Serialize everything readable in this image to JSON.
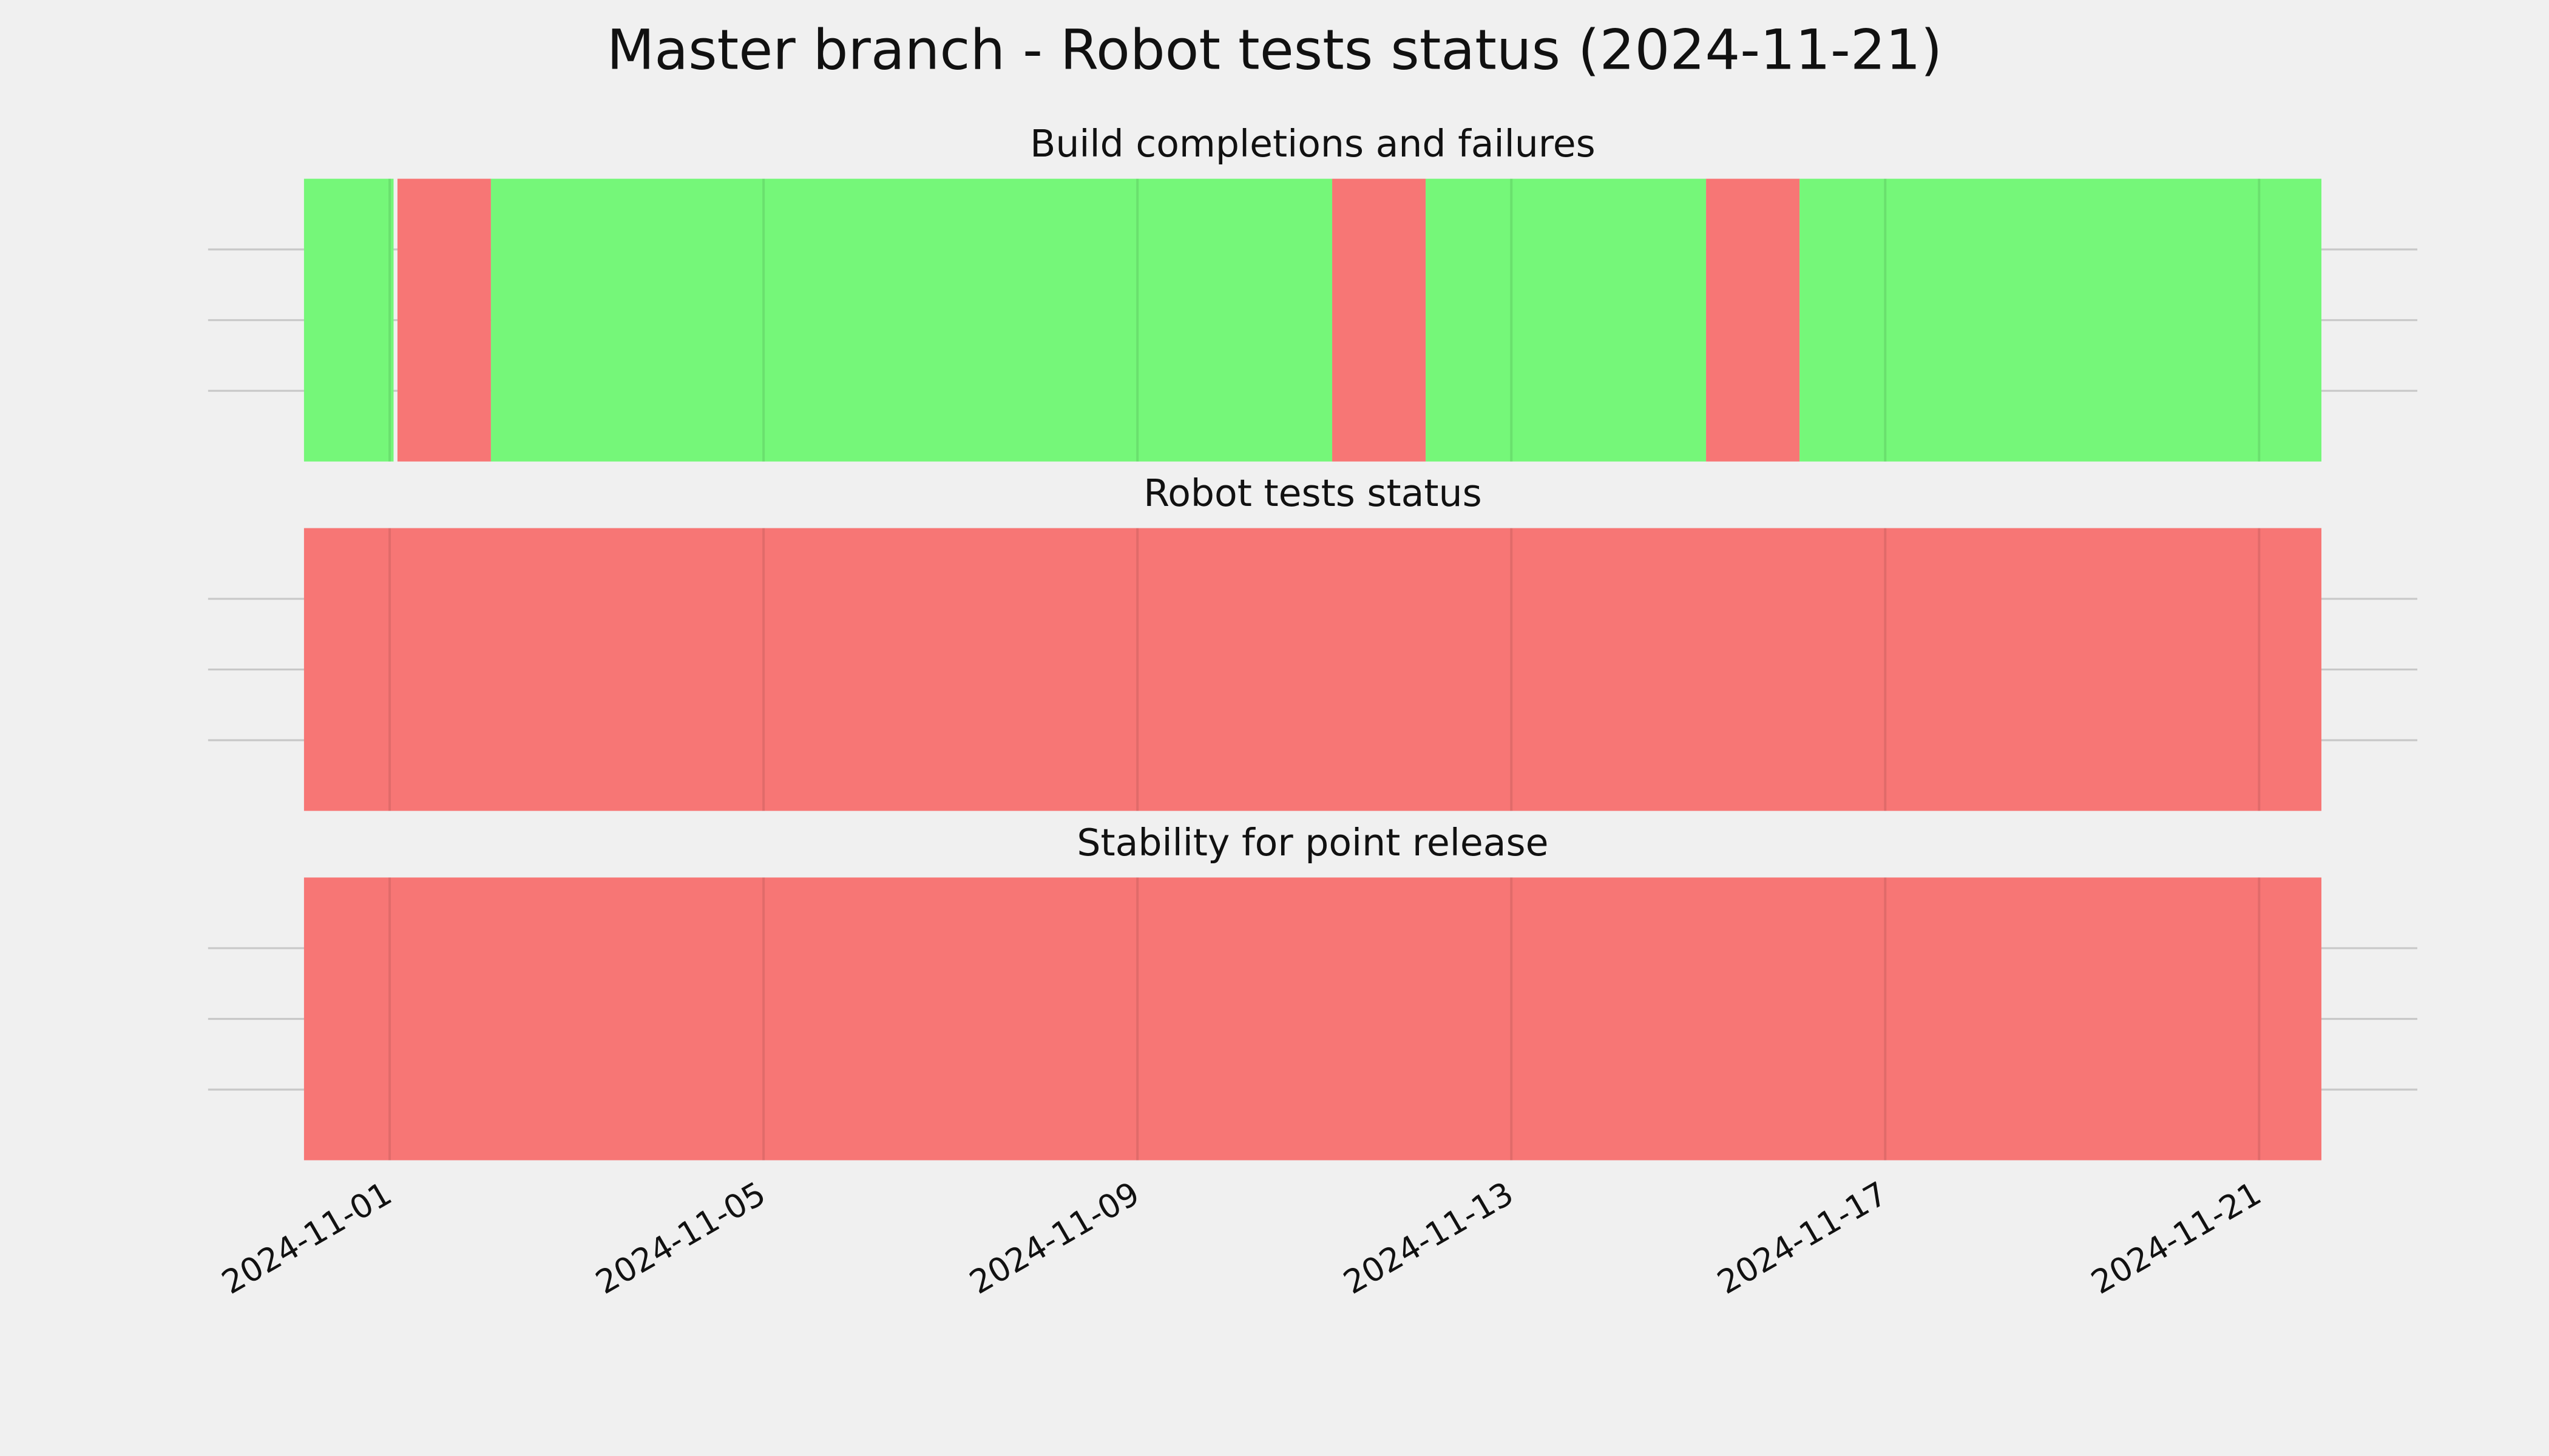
{
  "title": "Master branch - Robot tests status (2024-11-21)",
  "chart_data": [
    {
      "type": "timeline",
      "title": "Build completions and failures",
      "xlim": [
        "2024-10-31T02:00",
        "2024-11-21T16:00"
      ],
      "xticks": [
        "2024-11-01",
        "2024-11-05",
        "2024-11-09",
        "2024-11-13",
        "2024-11-17",
        "2024-11-21"
      ],
      "spans": [
        {
          "start": "2024-10-31T02:00",
          "end": "2024-11-01T01:00",
          "color": "#75f779"
        },
        {
          "start": "2024-11-01T02:00",
          "end": "2024-11-02T02:00",
          "color": "#f77675"
        },
        {
          "start": "2024-11-02T02:00",
          "end": "2024-11-11T02:00",
          "color": "#75f779"
        },
        {
          "start": "2024-11-11T02:00",
          "end": "2024-11-12T02:00",
          "color": "#f77675"
        },
        {
          "start": "2024-11-12T02:00",
          "end": "2024-11-15T02:00",
          "color": "#75f779"
        },
        {
          "start": "2024-11-15T02:00",
          "end": "2024-11-16T02:00",
          "color": "#f77675"
        },
        {
          "start": "2024-11-16T02:00",
          "end": "2024-11-21T16:00",
          "color": "#75f779"
        }
      ]
    },
    {
      "type": "timeline",
      "title": "Robot tests status",
      "xlim": [
        "2024-10-31T02:00",
        "2024-11-21T16:00"
      ],
      "xticks": [
        "2024-11-01",
        "2024-11-05",
        "2024-11-09",
        "2024-11-13",
        "2024-11-17",
        "2024-11-21"
      ],
      "spans": [
        {
          "start": "2024-10-31T02:00",
          "end": "2024-11-21T16:00",
          "color": "#f77675"
        }
      ]
    },
    {
      "type": "timeline",
      "title": "Stability for point release",
      "xlim": [
        "2024-10-31T02:00",
        "2024-11-21T16:00"
      ],
      "xticks": [
        "2024-11-01",
        "2024-11-05",
        "2024-11-09",
        "2024-11-13",
        "2024-11-17",
        "2024-11-21"
      ],
      "spans": [
        {
          "start": "2024-10-31T02:00",
          "end": "2024-11-21T16:00",
          "color": "#f77675"
        }
      ]
    }
  ]
}
